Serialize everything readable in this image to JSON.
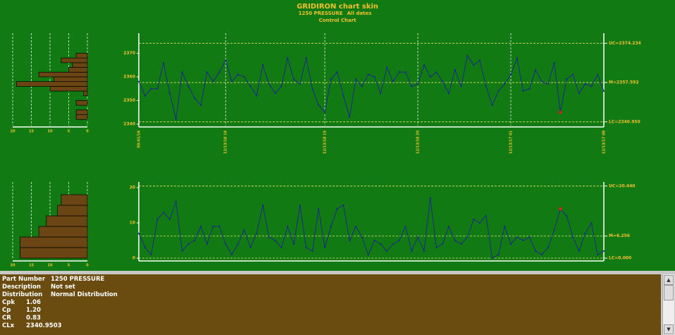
{
  "header": {
    "title": "GRIDIRON chart skin",
    "part": "1250 PRESSURE",
    "dates": "All dates",
    "kind": "Control Chart"
  },
  "chart_data": [
    {
      "type": "line",
      "series": [
        {
          "name": "1250 PRESSURE",
          "color": "#1c2a8c",
          "alert_color": "#e02010",
          "alert_points": [
            68
          ],
          "values": [
            2358,
            2352,
            2355,
            2355,
            2366,
            2353,
            2342,
            2362,
            2356,
            2351,
            2348,
            2362,
            2358,
            2362,
            2367,
            2358,
            2361,
            2360,
            2356,
            2352,
            2365,
            2357,
            2353,
            2356,
            2368,
            2359,
            2357,
            2368,
            2355,
            2348,
            2345,
            2359,
            2362,
            2352,
            2343,
            2359,
            2356,
            2361,
            2360,
            2353,
            2364,
            2358,
            2362,
            2362,
            2356,
            2357,
            2365,
            2360,
            2362,
            2358,
            2353,
            2363,
            2356,
            2369,
            2365,
            2367,
            2356,
            2348,
            2354,
            2357,
            2361,
            2368,
            2354,
            2355,
            2363,
            2358,
            2357,
            2366,
            2345,
            2359,
            2361,
            2353,
            2357,
            2356,
            2361,
            2354
          ]
        }
      ],
      "categories": [
        "00:41/16",
        null,
        null,
        null,
        null,
        null,
        null,
        null,
        null,
        null,
        null,
        null,
        null,
        null,
        "12/13/18 18",
        null,
        null,
        null,
        null,
        null,
        null,
        null,
        null,
        null,
        null,
        null,
        null,
        null,
        null,
        null,
        "12/13/18 15",
        null,
        null,
        null,
        null,
        null,
        null,
        null,
        null,
        null,
        null,
        null,
        null,
        null,
        null,
        "12/13/18 20",
        null,
        null,
        null,
        null,
        null,
        null,
        null,
        null,
        null,
        null,
        null,
        null,
        null,
        null,
        "12/13/17 01",
        null,
        null,
        null,
        null,
        null,
        null,
        null,
        null,
        null,
        null,
        null,
        null,
        null,
        null,
        "12/13/17 08"
      ],
      "ylim": [
        2339.4,
        2378.5
      ],
      "yticks": [
        2340,
        2350,
        2360,
        2370
      ],
      "grid": true,
      "limits": [
        {
          "value": 2374.234,
          "label": "UC=2374.234"
        },
        {
          "value": 2357.592,
          "label": "M=2357.592"
        },
        {
          "value": 2340.95,
          "label": "LC=2340.950"
        }
      ],
      "limit_color": "#e8e070"
    },
    {
      "type": "histogram",
      "bins": [
        2342,
        2344,
        2346,
        2348,
        2350,
        2352,
        2354,
        2356,
        2358,
        2360,
        2362,
        2364,
        2366,
        2368,
        2370
      ],
      "counts": [
        3,
        3,
        0,
        3,
        0,
        1,
        10,
        19,
        9,
        13,
        5,
        4,
        7,
        3
      ],
      "color": "#6b4513",
      "ylim": [
        2339.4,
        2378.5
      ],
      "xlim": [
        20,
        0
      ],
      "xticks": [
        20,
        15,
        10,
        5,
        0
      ],
      "grid": true
    },
    {
      "type": "line",
      "series": [
        {
          "name": "Moving Range",
          "color": "#1c2a8c",
          "alert_color": "#e02010",
          "alert_points": [
            68
          ],
          "values": [
            7,
            3,
            1,
            11,
            13,
            11,
            16,
            2,
            4,
            5,
            9,
            4,
            9,
            9,
            4,
            1,
            4,
            8,
            3,
            7,
            15,
            6,
            5,
            3,
            9,
            4,
            15,
            3,
            2,
            14,
            3,
            9,
            14,
            15,
            5,
            9,
            6,
            1,
            5,
            4,
            2,
            4,
            5,
            9,
            2,
            6,
            2,
            17,
            3,
            4,
            9,
            5,
            4,
            6,
            11,
            10,
            12,
            0,
            1,
            9,
            4,
            6,
            5,
            6,
            2,
            1,
            3,
            8,
            14,
            12,
            6,
            2,
            7,
            10,
            1,
            2
          ]
        }
      ],
      "ylim": [
        -0.4,
        21.6
      ],
      "yticks": [
        0,
        10,
        20
      ],
      "grid": true,
      "limits": [
        {
          "value": 20.44,
          "label": "UC=20.440"
        },
        {
          "value": 6.256,
          "label": "M=6.256"
        },
        {
          "value": 0,
          "label": "LC=0.000"
        }
      ],
      "limit_color": "#e8e070"
    },
    {
      "type": "histogram",
      "bins": [
        0,
        3,
        6,
        9,
        12,
        15,
        18
      ],
      "counts": [
        18,
        18,
        13,
        11,
        8,
        7
      ],
      "color": "#6b4513",
      "ylim": [
        -0.4,
        21.6
      ],
      "xlim": [
        20,
        0
      ],
      "xticks": [
        20,
        15,
        10,
        5,
        0
      ],
      "grid": true
    }
  ],
  "details": {
    "rows": [
      [
        "Part Number",
        "1250 PRESSURE"
      ],
      [
        "Description",
        "Not set"
      ],
      [
        "Distribution",
        "Normal Distribution"
      ],
      [
        "Cpk",
        "1.06"
      ],
      [
        "Cp",
        "1.20"
      ],
      [
        "CR",
        "0.83"
      ],
      [
        "CLx",
        "2340.9503"
      ]
    ]
  }
}
